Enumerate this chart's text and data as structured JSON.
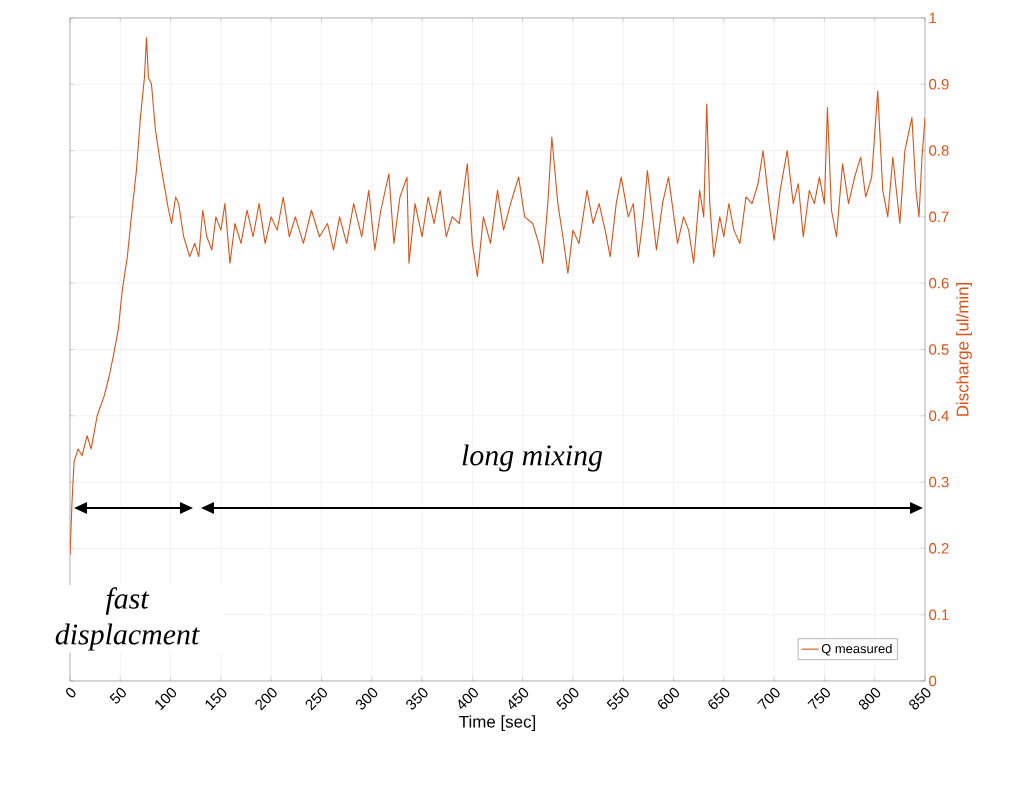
{
  "chart_data": {
    "type": "line",
    "xlabel": "Time [sec]",
    "ylabel": "Discharge [ul/min]",
    "xlim": [
      0,
      850
    ],
    "xticks": [
      0,
      50,
      100,
      150,
      200,
      250,
      300,
      350,
      400,
      450,
      500,
      550,
      600,
      650,
      700,
      750,
      800,
      850
    ],
    "ylim": [
      0,
      1
    ],
    "yticks": [
      0,
      0.1,
      0.2,
      0.3,
      0.4,
      0.5,
      0.6,
      0.7,
      0.8,
      0.9,
      1
    ],
    "grid": true,
    "legend": "bottom right",
    "annotations": [
      "long mixing",
      "fast displacment"
    ],
    "series": [
      {
        "name": "Q measured",
        "color": "#d95319",
        "x": [
          0,
          2,
          4,
          8,
          12,
          17,
          21,
          27,
          34,
          39,
          43,
          48,
          52,
          57,
          61,
          66,
          70,
          74,
          76,
          78,
          81,
          85,
          90,
          94,
          98,
          101,
          105,
          108,
          113,
          119,
          124,
          128,
          132,
          136,
          141,
          145,
          150,
          154,
          159,
          164,
          170,
          176,
          182,
          188,
          194,
          200,
          206,
          212,
          218,
          224,
          232,
          240,
          248,
          256,
          262,
          268,
          275,
          282,
          290,
          297,
          303,
          309,
          317,
          322,
          328,
          335,
          337,
          343,
          350,
          356,
          362,
          368,
          374,
          380,
          387,
          395,
          400,
          405,
          411,
          418,
          425,
          431,
          438,
          446,
          452,
          460,
          466,
          470,
          475,
          479,
          485,
          490,
          495,
          500,
          506,
          514,
          520,
          526,
          532,
          537,
          543,
          548,
          555,
          560,
          565,
          570,
          574,
          583,
          589,
          595,
          604,
          610,
          615,
          620,
          626,
          630,
          633,
          636,
          640,
          646,
          650,
          655,
          660,
          666,
          672,
          678,
          684,
          689,
          695,
          700,
          706,
          713,
          719,
          724,
          729,
          735,
          740,
          745,
          750,
          753,
          757,
          762,
          768,
          774,
          780,
          786,
          791,
          797,
          803,
          808,
          813,
          818,
          825,
          830,
          837,
          841,
          844,
          847,
          850
        ],
        "values": [
          0.19,
          0.27,
          0.33,
          0.35,
          0.34,
          0.37,
          0.35,
          0.4,
          0.43,
          0.46,
          0.49,
          0.53,
          0.59,
          0.64,
          0.7,
          0.77,
          0.85,
          0.91,
          0.97,
          0.91,
          0.9,
          0.83,
          0.78,
          0.745,
          0.71,
          0.69,
          0.73,
          0.72,
          0.67,
          0.64,
          0.66,
          0.64,
          0.71,
          0.67,
          0.65,
          0.7,
          0.68,
          0.72,
          0.63,
          0.69,
          0.66,
          0.71,
          0.67,
          0.72,
          0.66,
          0.7,
          0.68,
          0.73,
          0.67,
          0.7,
          0.66,
          0.71,
          0.67,
          0.69,
          0.65,
          0.7,
          0.66,
          0.72,
          0.67,
          0.74,
          0.65,
          0.71,
          0.765,
          0.66,
          0.73,
          0.76,
          0.63,
          0.72,
          0.67,
          0.73,
          0.69,
          0.74,
          0.67,
          0.7,
          0.69,
          0.78,
          0.66,
          0.61,
          0.7,
          0.66,
          0.74,
          0.68,
          0.72,
          0.76,
          0.7,
          0.69,
          0.66,
          0.63,
          0.72,
          0.82,
          0.72,
          0.67,
          0.615,
          0.68,
          0.66,
          0.74,
          0.69,
          0.72,
          0.68,
          0.64,
          0.72,
          0.76,
          0.7,
          0.72,
          0.64,
          0.7,
          0.77,
          0.65,
          0.72,
          0.76,
          0.66,
          0.7,
          0.68,
          0.63,
          0.74,
          0.7,
          0.87,
          0.72,
          0.64,
          0.7,
          0.67,
          0.72,
          0.68,
          0.66,
          0.73,
          0.72,
          0.75,
          0.8,
          0.72,
          0.665,
          0.74,
          0.8,
          0.72,
          0.75,
          0.67,
          0.74,
          0.72,
          0.76,
          0.72,
          0.865,
          0.71,
          0.67,
          0.78,
          0.72,
          0.76,
          0.79,
          0.73,
          0.76,
          0.89,
          0.74,
          0.7,
          0.79,
          0.69,
          0.8,
          0.85,
          0.74,
          0.7,
          0.79,
          0.85
        ]
      }
    ]
  }
}
